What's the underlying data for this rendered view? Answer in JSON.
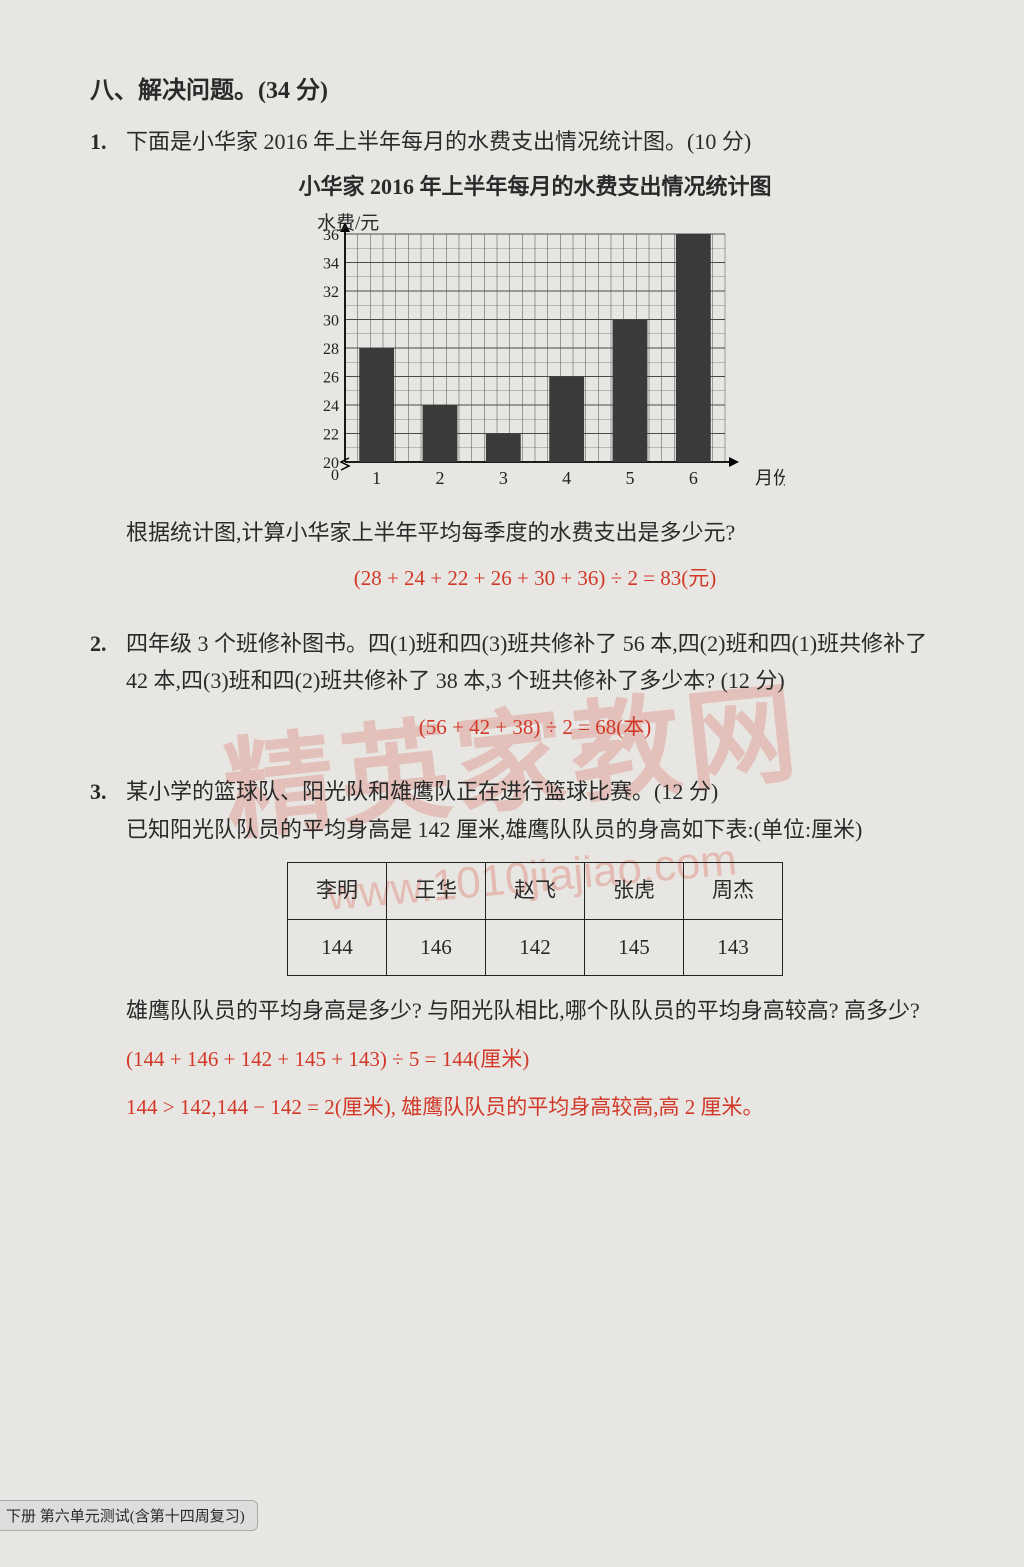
{
  "section": {
    "header": "八、解决问题。(34 分)"
  },
  "p1": {
    "num": "1.",
    "stem": "下面是小华家 2016 年上半年每月的水费支出情况统计图。(10 分)",
    "chart_title": "小华家 2016 年上半年每月的水费支出情况统计图",
    "ylabel": "水费/元",
    "xlabel": "月份",
    "chart": {
      "type": "bar",
      "categories": [
        "1",
        "2",
        "3",
        "4",
        "5",
        "6"
      ],
      "values": [
        28,
        24,
        22,
        26,
        30,
        36
      ],
      "ylim": [
        20,
        36
      ],
      "ytick_vals": [
        20,
        22,
        24,
        26,
        28,
        30,
        32,
        34,
        36
      ],
      "bar_color": "#3a3a3a",
      "grid_color": "#4a4a4a",
      "background_color": "#e8e6e2",
      "bar_width_ratio": 0.55,
      "axis_break": true
    },
    "question": "根据统计图,计算小华家上半年平均每季度的水费支出是多少元?",
    "answer": "(28 + 24 + 22 + 26 + 30 + 36) ÷ 2 = 83(元)"
  },
  "p2": {
    "num": "2.",
    "stem": "四年级 3 个班修补图书。四(1)班和四(3)班共修补了 56 本,四(2)班和四(1)班共修补了 42 本,四(3)班和四(2)班共修补了 38 本,3 个班共修补了多少本? (12 分)",
    "answer": "(56 + 42 + 38) ÷ 2 = 68(本)"
  },
  "p3": {
    "num": "3.",
    "stem1": "某小学的篮球队、阳光队和雄鹰队正在进行篮球比赛。(12 分)",
    "stem2": "已知阳光队队员的平均身高是 142 厘米,雄鹰队队员的身高如下表:(单位:厘米)",
    "table": {
      "columns": [
        "李明",
        "王华",
        "赵飞",
        "张虎",
        "周杰"
      ],
      "rows": [
        [
          "144",
          "146",
          "142",
          "145",
          "143"
        ]
      ]
    },
    "question": "雄鹰队队员的平均身高是多少? 与阳光队相比,哪个队队员的平均身高较高? 高多少?",
    "answer1": "(144 + 146 + 142 + 145 + 143) ÷ 5 = 144(厘米)",
    "answer2": "144 > 142,144 − 142 = 2(厘米), 雄鹰队队员的平均身高较高,高 2 厘米。"
  },
  "watermark": {
    "main": "精英家教网",
    "sub": "www.1010jiajiao.com"
  },
  "footer": "下册  第六单元测试(含第十四周复习)"
}
